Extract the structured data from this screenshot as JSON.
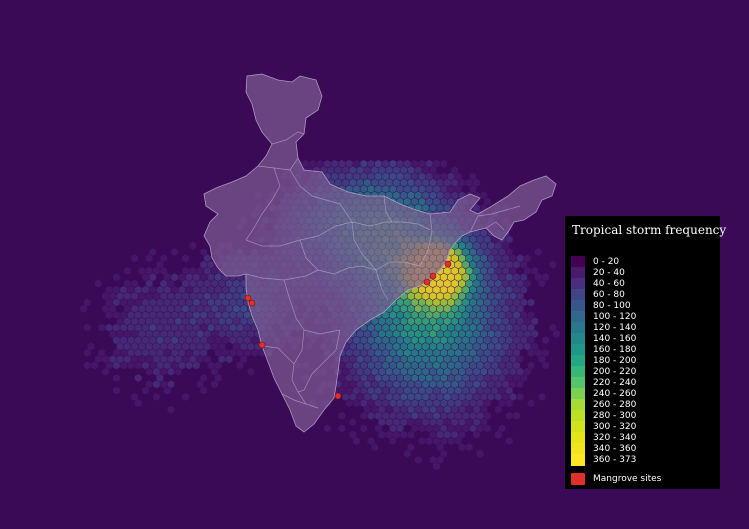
{
  "colors": {
    "background": "#3b0a57",
    "land": "#7d5f93",
    "border": "#b8a4c8",
    "mangrove": "#e0302b"
  },
  "legend": {
    "title": "Tropical storm frequency",
    "classes": [
      {
        "label": "0 - 20",
        "color": "#440154"
      },
      {
        "label": "20 - 40",
        "color": "#481a6c"
      },
      {
        "label": "40 - 60",
        "color": "#472f7d"
      },
      {
        "label": "60 - 80",
        "color": "#414487"
      },
      {
        "label": "80 - 100",
        "color": "#39568c"
      },
      {
        "label": "100 - 120",
        "color": "#31688e"
      },
      {
        "label": "120 - 140",
        "color": "#2a788e"
      },
      {
        "label": "140 - 160",
        "color": "#23888e"
      },
      {
        "label": "160 - 180",
        "color": "#1f988b"
      },
      {
        "label": "180 - 200",
        "color": "#22a884"
      },
      {
        "label": "200 - 220",
        "color": "#35b779"
      },
      {
        "label": "220 - 240",
        "color": "#54c568"
      },
      {
        "label": "240 - 260",
        "color": "#7ad151"
      },
      {
        "label": "260 - 280",
        "color": "#a5db36"
      },
      {
        "label": "280 - 300",
        "color": "#bddf26"
      },
      {
        "label": "300 - 320",
        "color": "#d2e21b"
      },
      {
        "label": "320 - 340",
        "color": "#e5e419"
      },
      {
        "label": "340 - 360",
        "color": "#f1e51d"
      },
      {
        "label": "360 - 373",
        "color": "#fde725"
      }
    ],
    "mangrove_label": "Mangrove sites"
  }
}
